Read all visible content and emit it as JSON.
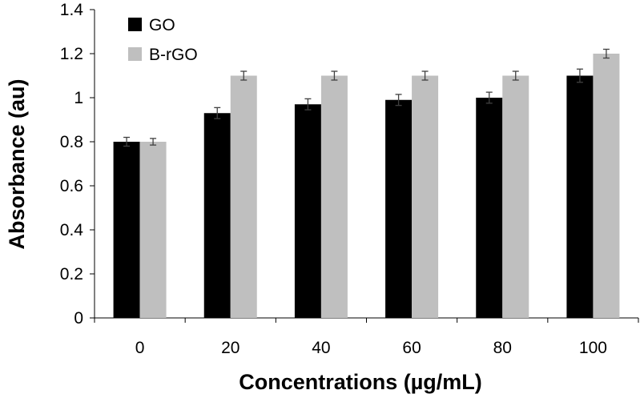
{
  "chart_data": {
    "type": "bar",
    "title": "",
    "xlabel": "Concentrations (µg/mL)",
    "ylabel": "Absorbance (au)",
    "categories": [
      "0",
      "20",
      "40",
      "60",
      "80",
      "100"
    ],
    "ylim": [
      0,
      1.4
    ],
    "yticks": [
      "0",
      "0.2",
      "0.4",
      "0.6",
      "0.8",
      "1",
      "1.2",
      "1.4"
    ],
    "grid": false,
    "legend_position": "top-left",
    "series": [
      {
        "name": "GO",
        "color": "#000000",
        "values": [
          0.8,
          0.93,
          0.97,
          0.99,
          1.0,
          1.1
        ],
        "errors": [
          0.02,
          0.025,
          0.025,
          0.025,
          0.025,
          0.03
        ]
      },
      {
        "name": "B-rGO",
        "color": "#bfbfbf",
        "values": [
          0.8,
          1.1,
          1.1,
          1.1,
          1.1,
          1.2
        ],
        "errors": [
          0.015,
          0.02,
          0.02,
          0.02,
          0.02,
          0.02
        ]
      }
    ]
  }
}
